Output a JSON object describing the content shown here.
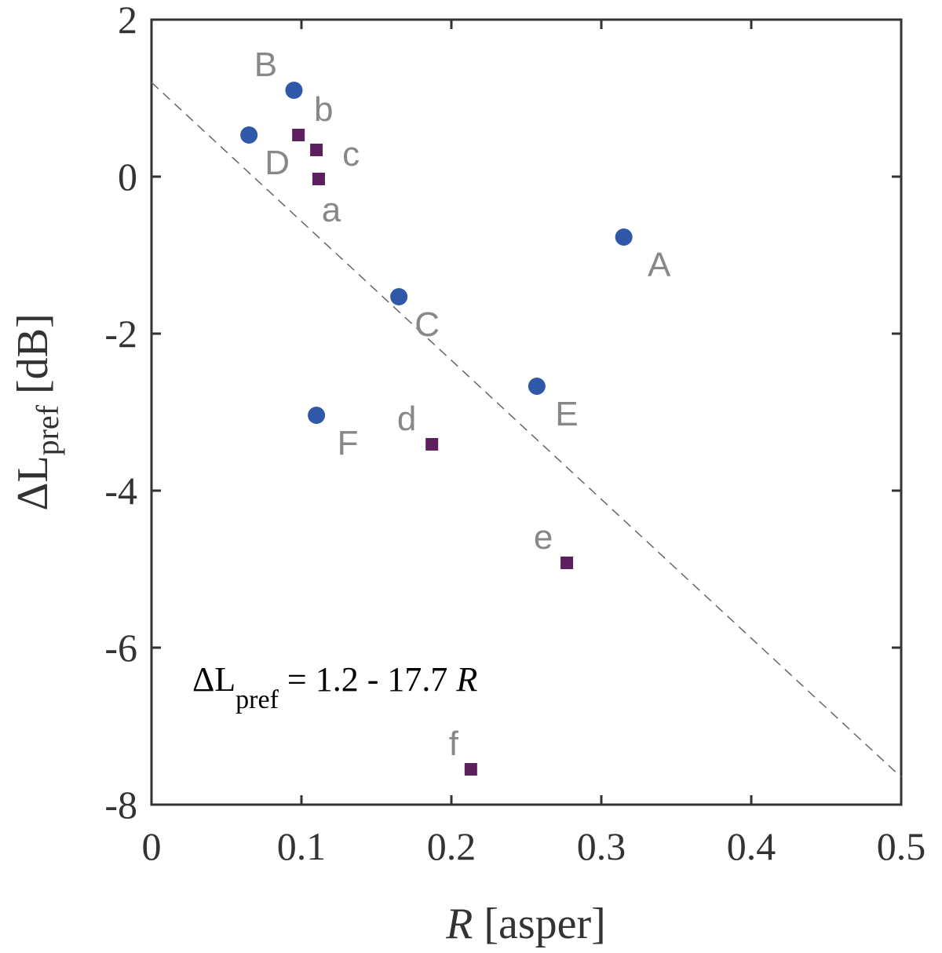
{
  "chart_data": {
    "type": "scatter",
    "xlabel": [
      "R",
      " [asper]"
    ],
    "ylabel": [
      "ΔL",
      "pref",
      " [dB]"
    ],
    "xlim": [
      0,
      0.5
    ],
    "xticks": [
      0,
      0.1,
      0.2,
      0.3,
      0.4,
      0.5
    ],
    "ylim": [
      -8,
      2
    ],
    "yticks": [
      -8,
      -6,
      -4,
      -2,
      0,
      2
    ],
    "series": [
      {
        "color": "#2f59a8",
        "marker": "circle",
        "labels": [
          "B",
          "D",
          "A",
          "C",
          "E",
          "F"
        ],
        "x": [
          0.095,
          0.065,
          0.315,
          0.165,
          0.257,
          0.11
        ],
        "values": [
          1.1,
          0.53,
          -0.77,
          -1.53,
          -2.67,
          -3.04
        ]
      },
      {
        "color": "#5e1f5e",
        "marker": "square",
        "labels": [
          "b",
          "c",
          "a",
          "d",
          "e",
          "f"
        ],
        "x": [
          0.098,
          0.11,
          0.1115,
          0.187,
          0.277,
          0.213
        ],
        "values": [
          0.53,
          0.34,
          -0.03,
          -3.41,
          -4.92,
          -7.55
        ]
      }
    ],
    "fit": {
      "intercept": 1.2,
      "slope": -17.7,
      "color": "#666"
    },
    "annotation": [
      "ΔL",
      "pref",
      " = 1.2 - 17.7 ",
      "R"
    ]
  }
}
